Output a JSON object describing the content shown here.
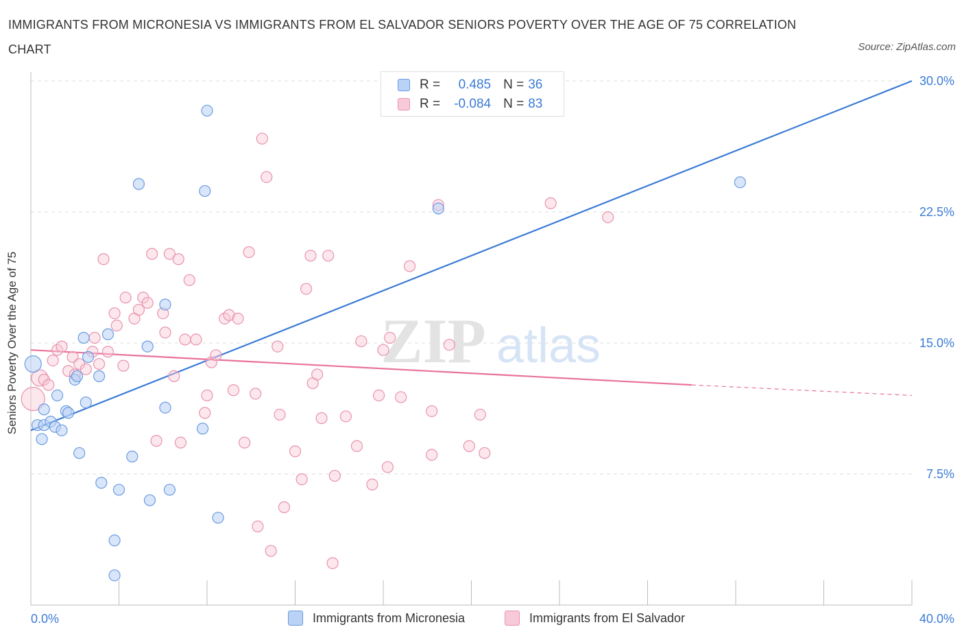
{
  "title": "IMMIGRANTS FROM MICRONESIA VS IMMIGRANTS FROM EL SALVADOR SENIORS POVERTY OVER THE AGE OF 75 CORRELATION CHART",
  "source": "Source: ZipAtlas.com",
  "watermark": {
    "zip": "ZIP",
    "atlas": "atlas"
  },
  "legend": {
    "rows": [
      {
        "r_label": "R =",
        "r_value": "0.485",
        "n_label": "N =",
        "n_value": "36"
      },
      {
        "r_label": "R =",
        "r_value": "-0.084",
        "n_label": "N =",
        "n_value": "83"
      }
    ]
  },
  "colors": {
    "blue": "#3a7bd5",
    "blue_fill": "#b9d2f5",
    "pink": "#e8729a",
    "pink_fill": "#f8c9d8",
    "grid": "#dddddd"
  },
  "chart_data": {
    "type": "scatter",
    "title": "IMMIGRANTS FROM MICRONESIA VS IMMIGRANTS FROM EL SALVADOR SENIORS POVERTY OVER THE AGE OF 75 CORRELATION CHART",
    "xlabel": "",
    "ylabel": "Seniors Poverty Over the Age of 75",
    "xlim": [
      0,
      40
    ],
    "ylim": [
      0,
      30
    ],
    "x_tick_labels": [
      "0.0%",
      "40.0%"
    ],
    "y_ticks": [
      7.5,
      15.0,
      22.5,
      30.0
    ],
    "y_tick_labels": [
      "7.5%",
      "15.0%",
      "22.5%",
      "30.0%"
    ],
    "grid": true,
    "legend_position": "bottom",
    "series": [
      {
        "name": "Immigrants from Micronesia",
        "color": "#3a7bd5",
        "points": [
          [
            0.1,
            13.8
          ],
          [
            0.3,
            10.3
          ],
          [
            0.5,
            9.5
          ],
          [
            0.6,
            10.3
          ],
          [
            0.6,
            11.2
          ],
          [
            0.9,
            10.5
          ],
          [
            1.1,
            10.2
          ],
          [
            1.2,
            12.0
          ],
          [
            1.4,
            10.0
          ],
          [
            1.6,
            11.1
          ],
          [
            1.7,
            11.0
          ],
          [
            2.0,
            12.9
          ],
          [
            2.1,
            13.1
          ],
          [
            2.2,
            8.7
          ],
          [
            2.4,
            15.3
          ],
          [
            2.5,
            11.6
          ],
          [
            2.6,
            14.2
          ],
          [
            3.1,
            13.1
          ],
          [
            3.2,
            7.0
          ],
          [
            3.5,
            15.5
          ],
          [
            3.8,
            3.7
          ],
          [
            3.8,
            1.7
          ],
          [
            4.0,
            6.6
          ],
          [
            4.6,
            8.5
          ],
          [
            4.9,
            24.1
          ],
          [
            5.3,
            14.8
          ],
          [
            5.4,
            6.0
          ],
          [
            6.1,
            17.2
          ],
          [
            6.3,
            6.6
          ],
          [
            6.1,
            11.3
          ],
          [
            7.8,
            10.1
          ],
          [
            7.9,
            23.7
          ],
          [
            8.0,
            28.3
          ],
          [
            8.5,
            5.0
          ],
          [
            18.5,
            22.7
          ],
          [
            32.2,
            24.2
          ]
        ],
        "trend": {
          "x": [
            0,
            40
          ],
          "y": [
            10.0,
            30.0
          ]
        }
      },
      {
        "name": "Immigrants from El Salvador",
        "color": "#e8729a",
        "points": [
          [
            0.1,
            11.8
          ],
          [
            0.4,
            13.0
          ],
          [
            0.6,
            12.9
          ],
          [
            0.8,
            12.6
          ],
          [
            1.0,
            14.0
          ],
          [
            1.2,
            14.6
          ],
          [
            1.4,
            14.8
          ],
          [
            1.7,
            13.4
          ],
          [
            1.9,
            14.2
          ],
          [
            2.0,
            13.2
          ],
          [
            2.2,
            13.8
          ],
          [
            2.5,
            13.5
          ],
          [
            2.8,
            14.5
          ],
          [
            2.9,
            15.3
          ],
          [
            3.1,
            13.8
          ],
          [
            3.3,
            19.8
          ],
          [
            3.5,
            14.5
          ],
          [
            3.8,
            16.7
          ],
          [
            3.9,
            16.0
          ],
          [
            4.2,
            13.7
          ],
          [
            4.3,
            17.6
          ],
          [
            4.7,
            16.4
          ],
          [
            4.9,
            16.9
          ],
          [
            5.1,
            17.6
          ],
          [
            5.3,
            17.3
          ],
          [
            5.5,
            20.1
          ],
          [
            5.7,
            9.4
          ],
          [
            6.0,
            16.7
          ],
          [
            6.1,
            15.6
          ],
          [
            6.3,
            20.1
          ],
          [
            6.5,
            13.1
          ],
          [
            6.7,
            19.8
          ],
          [
            6.8,
            9.3
          ],
          [
            7.0,
            15.2
          ],
          [
            7.2,
            18.6
          ],
          [
            7.5,
            15.2
          ],
          [
            7.9,
            11.0
          ],
          [
            8.0,
            12.0
          ],
          [
            8.2,
            13.9
          ],
          [
            8.4,
            14.3
          ],
          [
            8.8,
            16.4
          ],
          [
            9.0,
            16.6
          ],
          [
            9.2,
            12.3
          ],
          [
            9.4,
            16.4
          ],
          [
            9.7,
            9.3
          ],
          [
            9.9,
            20.2
          ],
          [
            10.2,
            12.1
          ],
          [
            10.3,
            4.5
          ],
          [
            10.5,
            26.7
          ],
          [
            10.7,
            24.5
          ],
          [
            10.9,
            3.1
          ],
          [
            11.2,
            14.8
          ],
          [
            11.3,
            10.9
          ],
          [
            11.5,
            5.6
          ],
          [
            12.0,
            8.8
          ],
          [
            12.3,
            7.2
          ],
          [
            12.5,
            18.1
          ],
          [
            12.7,
            20.0
          ],
          [
            12.8,
            12.7
          ],
          [
            13.0,
            13.2
          ],
          [
            13.2,
            10.7
          ],
          [
            13.5,
            20.0
          ],
          [
            13.7,
            2.4
          ],
          [
            13.8,
            7.4
          ],
          [
            14.3,
            10.8
          ],
          [
            14.8,
            9.1
          ],
          [
            15.0,
            15.1
          ],
          [
            15.5,
            6.9
          ],
          [
            16.0,
            14.6
          ],
          [
            16.3,
            15.3
          ],
          [
            15.8,
            12.0
          ],
          [
            16.2,
            7.9
          ],
          [
            16.8,
            11.9
          ],
          [
            17.2,
            19.4
          ],
          [
            18.2,
            11.1
          ],
          [
            18.5,
            22.9
          ],
          [
            18.2,
            8.6
          ],
          [
            19.0,
            14.9
          ],
          [
            19.9,
            9.1
          ],
          [
            20.4,
            10.9
          ],
          [
            20.6,
            8.7
          ],
          [
            23.6,
            23.0
          ],
          [
            26.2,
            22.2
          ]
        ],
        "trend": {
          "x": [
            0,
            30
          ],
          "y": [
            14.6,
            12.6
          ]
        },
        "trend_dashed": {
          "x": [
            30,
            40
          ],
          "y": [
            12.6,
            12.0
          ]
        }
      }
    ]
  }
}
